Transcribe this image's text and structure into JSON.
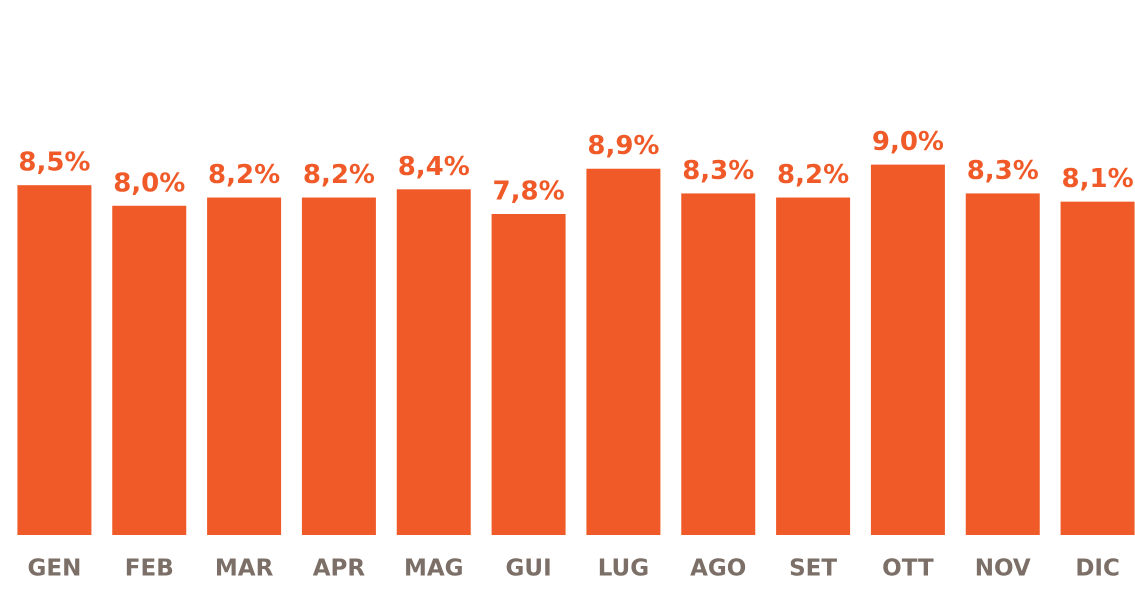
{
  "chart_data": {
    "type": "bar",
    "categories": [
      "GEN",
      "FEB",
      "MAR",
      "APR",
      "MAG",
      "GUI",
      "LUG",
      "AGO",
      "SET",
      "OTT",
      "NOV",
      "DIC"
    ],
    "values": [
      8.5,
      8.0,
      8.2,
      8.2,
      8.4,
      7.8,
      8.9,
      8.3,
      8.2,
      9.0,
      8.3,
      8.1
    ],
    "value_labels": [
      "8,5%",
      "8,0%",
      "8,2%",
      "8,2%",
      "8,4%",
      "7,8%",
      "8,9%",
      "8,3%",
      "8,2%",
      "9,0%",
      "8,3%",
      "8,1%"
    ],
    "color": "#f05a28",
    "ylim": [
      0,
      13
    ]
  }
}
